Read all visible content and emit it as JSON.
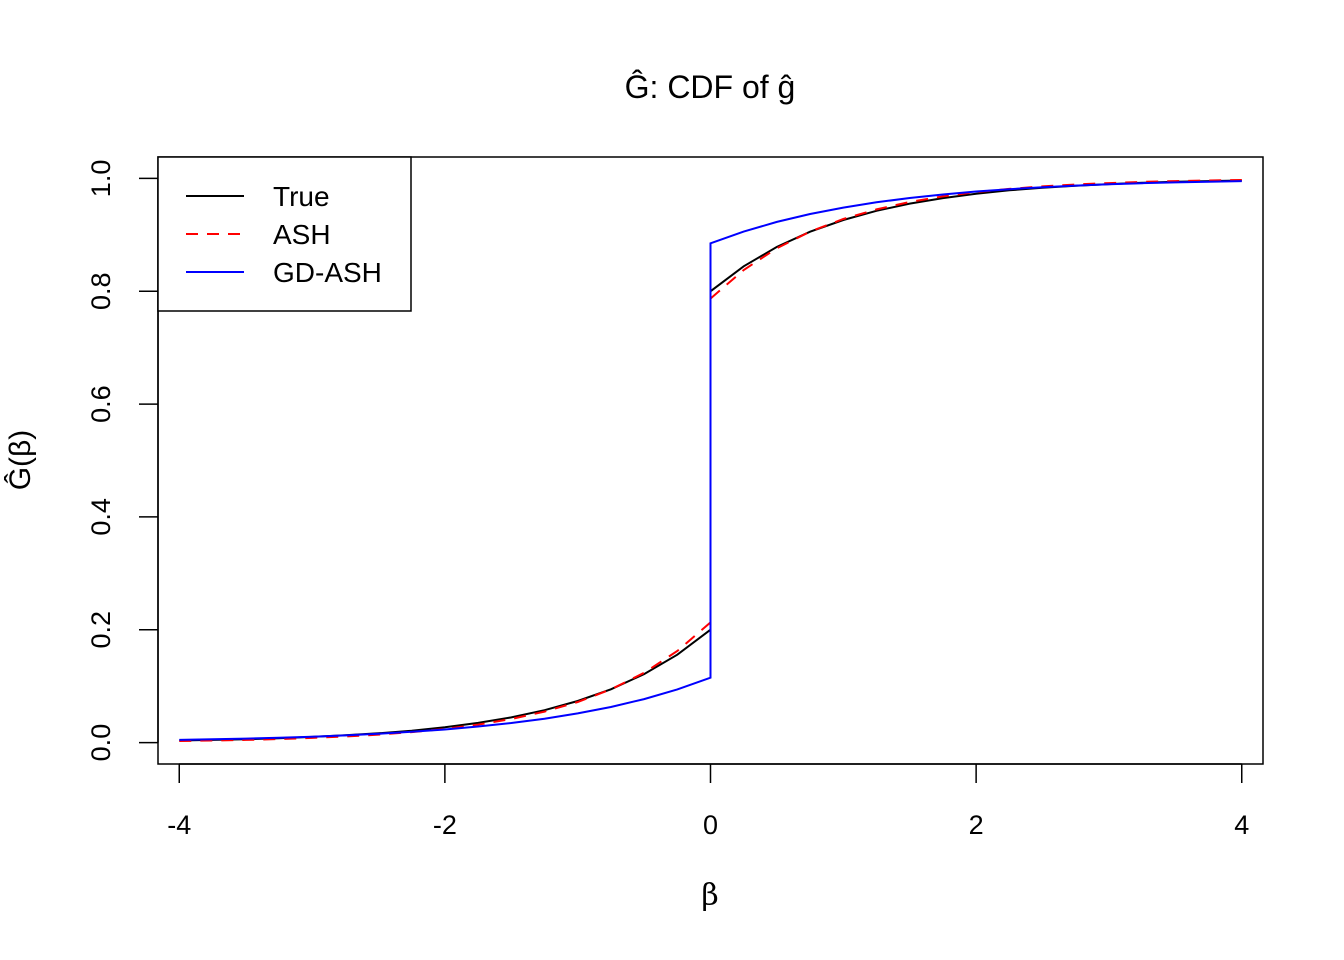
{
  "chart_data": {
    "type": "line",
    "title": "Ĝ: CDF of ĝ",
    "xlabel": "β",
    "ylabel": "Ĝ(β)",
    "xlim": [
      -4.16,
      4.16
    ],
    "ylim": [
      -0.038,
      1.038
    ],
    "xticks": [
      -4,
      -2,
      0,
      2,
      4
    ],
    "xtick_labels": [
      "-4",
      "-2",
      "0",
      "2",
      "4"
    ],
    "yticks": [
      0,
      0.2,
      0.4,
      0.6,
      0.8,
      1.0
    ],
    "ytick_labels": [
      "0.0",
      "0.2",
      "0.4",
      "0.6",
      "0.8",
      "1.0"
    ],
    "grid": false,
    "legend_position": "top-left",
    "x": [
      -4,
      -3.75,
      -3.5,
      -3.25,
      -3,
      -2.75,
      -2.5,
      -2.25,
      -2,
      -1.75,
      -1.5,
      -1.25,
      -1,
      -0.75,
      -0.5,
      -0.25,
      0,
      0,
      0.25,
      0.5,
      0.75,
      1,
      1.25,
      1.5,
      1.75,
      2,
      2.25,
      2.5,
      2.75,
      3,
      3.25,
      3.5,
      3.75,
      4
    ],
    "series": [
      {
        "name": "True",
        "color": "#000000",
        "dash": "solid",
        "values": [
          0.0037,
          0.0047,
          0.006,
          0.0078,
          0.01,
          0.0128,
          0.0164,
          0.0211,
          0.0271,
          0.0348,
          0.0446,
          0.0573,
          0.0736,
          0.0945,
          0.1213,
          0.1558,
          0.2,
          0.8,
          0.8442,
          0.8787,
          0.9055,
          0.9264,
          0.9427,
          0.9554,
          0.9652,
          0.9729,
          0.9789,
          0.9836,
          0.9872,
          0.99,
          0.9922,
          0.994,
          0.9953,
          0.9963
        ]
      },
      {
        "name": "ASH",
        "color": "#ff0000",
        "dash": "dashed",
        "values": [
          0.0028,
          0.0036,
          0.0047,
          0.0062,
          0.0082,
          0.0107,
          0.0141,
          0.0185,
          0.0242,
          0.0318,
          0.0417,
          0.0548,
          0.0719,
          0.0943,
          0.1237,
          0.1623,
          0.213,
          0.787,
          0.8377,
          0.8763,
          0.9057,
          0.9281,
          0.9452,
          0.9583,
          0.9682,
          0.9758,
          0.9815,
          0.9859,
          0.9893,
          0.9918,
          0.9938,
          0.9953,
          0.9964,
          0.9972
        ]
      },
      {
        "name": "GD-ASH",
        "color": "#0000ff",
        "dash": "solid",
        "values": [
          0.0047,
          0.0057,
          0.007,
          0.0085,
          0.0104,
          0.0127,
          0.0156,
          0.019,
          0.0232,
          0.0284,
          0.0346,
          0.0423,
          0.0517,
          0.0631,
          0.0771,
          0.0942,
          0.115,
          0.885,
          0.9058,
          0.9229,
          0.9369,
          0.9483,
          0.9577,
          0.9654,
          0.9716,
          0.9768,
          0.981,
          0.9844,
          0.9873,
          0.9896,
          0.9915,
          0.993,
          0.9943,
          0.9953
        ]
      }
    ]
  }
}
